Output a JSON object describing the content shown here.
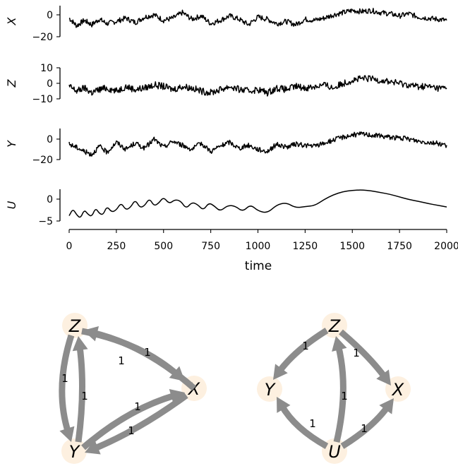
{
  "chart_data": [
    {
      "type": "line",
      "title": "",
      "xlabel": "time",
      "xlim": [
        0,
        2000
      ],
      "xticks": [
        "0",
        "250",
        "500",
        "750",
        "1000",
        "1250",
        "1500",
        "1750",
        "2000"
      ],
      "grid": false,
      "panels": [
        {
          "name": "X",
          "ylabel": "X",
          "yticks": [
            "0",
            "−20"
          ],
          "ylim": [
            -20,
            8
          ],
          "x": [
            0,
            40,
            80,
            120,
            160,
            200,
            250,
            300,
            350,
            400,
            450,
            500,
            550,
            600,
            650,
            700,
            750,
            800,
            850,
            900,
            950,
            1000,
            1050,
            1100,
            1150,
            1200,
            1250,
            1300,
            1350,
            1400,
            1450,
            1500,
            1550,
            1600,
            1650,
            1700,
            1750,
            1800,
            1850,
            1900,
            1950,
            2000
          ],
          "values": [
            -3,
            -10,
            -5,
            -9,
            -4,
            -8,
            -6,
            -3,
            -7,
            -2,
            0,
            -5,
            -3,
            2,
            -4,
            -1,
            -8,
            -5,
            -1,
            -4,
            -9,
            -2,
            -4,
            -8,
            -6,
            -9,
            -4,
            -5,
            -3,
            0,
            2,
            4,
            3,
            4,
            2,
            1,
            -1,
            1,
            -2,
            -3,
            -4,
            -5
          ]
        },
        {
          "name": "Z",
          "ylabel": "Z",
          "yticks": [
            "10",
            "0",
            "−10"
          ],
          "ylim": [
            -10,
            10
          ],
          "x": [
            0,
            40,
            80,
            120,
            160,
            200,
            250,
            300,
            350,
            400,
            450,
            500,
            550,
            600,
            650,
            700,
            750,
            800,
            850,
            900,
            950,
            1000,
            1050,
            1100,
            1150,
            1200,
            1250,
            1300,
            1350,
            1400,
            1450,
            1500,
            1550,
            1600,
            1650,
            1700,
            1750,
            1800,
            1850,
            1900,
            1950,
            2000
          ],
          "values": [
            -2,
            -5,
            -3,
            -6,
            -4,
            -3,
            -5,
            -2,
            -4,
            -3,
            -1,
            -2,
            -4,
            -2,
            -3,
            -5,
            -6,
            -4,
            -2,
            -4,
            -5,
            -4,
            -6,
            -3,
            -4,
            -2,
            -3,
            -2,
            -1,
            -3,
            0,
            2,
            3,
            3,
            2,
            1,
            0,
            -1,
            -2,
            -2,
            -3,
            -3
          ]
        },
        {
          "name": "Y",
          "ylabel": "Y",
          "yticks": [
            "0",
            "−20"
          ],
          "ylim": [
            -20,
            8
          ],
          "x": [
            0,
            40,
            80,
            120,
            160,
            200,
            250,
            300,
            350,
            400,
            450,
            500,
            550,
            600,
            650,
            700,
            750,
            800,
            850,
            900,
            950,
            1000,
            1050,
            1100,
            1150,
            1200,
            1250,
            1300,
            1350,
            1400,
            1450,
            1500,
            1550,
            1600,
            1650,
            1700,
            1750,
            1800,
            1850,
            1900,
            1950,
            2000
          ],
          "values": [
            -5,
            -8,
            -12,
            -15,
            -7,
            -13,
            -3,
            -10,
            -4,
            -9,
            0,
            -8,
            -2,
            -6,
            -10,
            -4,
            -12,
            -7,
            -3,
            -9,
            -6,
            -10,
            -12,
            -5,
            -8,
            -5,
            -6,
            -7,
            -4,
            -1,
            2,
            4,
            5,
            4,
            3,
            2,
            1,
            0,
            -2,
            -3,
            -4,
            -6
          ]
        },
        {
          "name": "U",
          "ylabel": "U",
          "yticks": [
            "0",
            "−5"
          ],
          "ylim": [
            -5,
            2.5
          ],
          "x": [
            0,
            20,
            40,
            60,
            80,
            100,
            120,
            140,
            160,
            180,
            200,
            225,
            250,
            275,
            300,
            325,
            350,
            375,
            400,
            425,
            450,
            475,
            500,
            530,
            560,
            590,
            620,
            650,
            680,
            710,
            740,
            770,
            800,
            840,
            880,
            920,
            960,
            1000,
            1050,
            1100,
            1150,
            1200,
            1250,
            1300,
            1350,
            1400,
            1450,
            1500,
            1550,
            1600,
            1650,
            1700,
            1750,
            1800,
            1850,
            1900,
            1950,
            2000
          ],
          "values": [
            -3.8,
            -2.2,
            -3.6,
            -4.4,
            -2.4,
            -3.5,
            -4.0,
            -2.0,
            -3.3,
            -3.6,
            -1.6,
            -3.0,
            -2.5,
            -0.8,
            -2.5,
            -1.9,
            -0.1,
            -2.0,
            -1.5,
            0.2,
            -1.6,
            -0.9,
            0.5,
            -1.1,
            -0.1,
            -0.4,
            -2.2,
            -0.7,
            -1.2,
            -2.6,
            -0.8,
            -1.6,
            -2.8,
            -1.4,
            -1.6,
            -2.9,
            -1.2,
            -2.7,
            -3.2,
            -1.3,
            -0.8,
            -2.0,
            -1.7,
            -1.5,
            -0.1,
            1.0,
            1.7,
            2.0,
            2.1,
            1.9,
            1.5,
            1.1,
            0.5,
            -0.1,
            -0.5,
            -1.0,
            -1.4,
            -1.8
          ]
        }
      ]
    },
    {
      "type": "diagram",
      "graph": "left",
      "nodes": [
        "Z",
        "X",
        "Y"
      ],
      "edges": [
        {
          "from": "X",
          "to": "Z",
          "label": "1"
        },
        {
          "from": "Z",
          "to": "X",
          "label": "1"
        },
        {
          "from": "Z",
          "to": "Y",
          "label": "1"
        },
        {
          "from": "Y",
          "to": "Z",
          "label": "1"
        },
        {
          "from": "Y",
          "to": "X",
          "label": "1"
        },
        {
          "from": "X",
          "to": "Y",
          "label": "1"
        }
      ]
    },
    {
      "type": "diagram",
      "graph": "right",
      "nodes": [
        "Z",
        "Y",
        "X",
        "U"
      ],
      "edges": [
        {
          "from": "Z",
          "to": "Y",
          "label": "1"
        },
        {
          "from": "Z",
          "to": "X",
          "label": "1"
        },
        {
          "from": "U",
          "to": "Z",
          "label": "1"
        },
        {
          "from": "U",
          "to": "Y",
          "label": "1"
        },
        {
          "from": "U",
          "to": "X",
          "label": "1"
        }
      ]
    }
  ],
  "colors": {
    "line": "#000000",
    "edge": "#8c8c8c",
    "node": "#fdf0e0"
  }
}
